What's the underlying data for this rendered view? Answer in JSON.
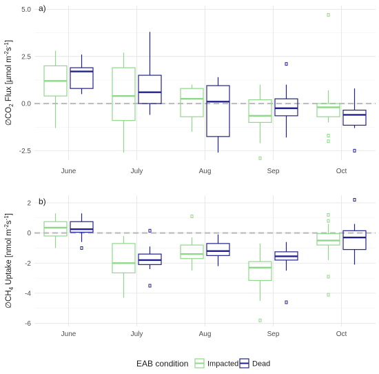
{
  "colors": {
    "impacted": "#8fd88a",
    "dead": "#20208f",
    "grid_major": "#e6e6e6",
    "grid_minor": "#f2f2f2",
    "zero_line": "#bdbdbd"
  },
  "chart_data": [
    {
      "type": "box",
      "panel_label": "a)",
      "ylabel_prefix": "∅CO",
      "ylabel_sub": "2",
      "ylabel_mid": " Flux [",
      "ylabel_unit": "µmol m",
      "ylabel_sup1": "-2",
      "ylabel_s": "s",
      "ylabel_sup2": "-1",
      "ylabel_end": "]",
      "ylim": [
        -3.0,
        5.2
      ],
      "yticks": [
        {
          "value": 5.0,
          "label": "5.0"
        },
        {
          "value": 2.5,
          "label": "2.5"
        },
        {
          "value": 0.0,
          "label": "0.0"
        },
        {
          "value": -2.5,
          "label": "-2.5"
        }
      ],
      "categories": [
        "June",
        "July",
        "Aug",
        "Sep",
        "Oct"
      ],
      "reference_line": 0,
      "series": [
        {
          "name": "Impacted",
          "boxes": [
            {
              "min": -1.3,
              "q1": 0.4,
              "median": 1.2,
              "q3": 2.0,
              "max": 2.8,
              "outliers": []
            },
            {
              "min": -2.6,
              "q1": -0.9,
              "median": 0.4,
              "q3": 1.9,
              "max": 2.7,
              "outliers": []
            },
            {
              "min": -1.5,
              "q1": -0.7,
              "median": 0.25,
              "q3": 0.8,
              "max": 1.0,
              "outliers": []
            },
            {
              "min": -2.1,
              "q1": -1.0,
              "median": -0.65,
              "q3": 0.2,
              "max": 1.0,
              "outliers": [
                -2.9
              ]
            },
            {
              "min": -1.0,
              "q1": -0.7,
              "median": -0.2,
              "q3": 0.0,
              "max": 0.7,
              "outliers": [
                4.7,
                -1.7,
                -2.0
              ]
            }
          ]
        },
        {
          "name": "Dead",
          "boxes": [
            {
              "min": 0.5,
              "q1": 0.8,
              "median": 1.7,
              "q3": 1.9,
              "max": 2.6,
              "outliers": []
            },
            {
              "min": -0.6,
              "q1": 0.0,
              "median": 0.6,
              "q3": 1.5,
              "max": 3.8,
              "outliers": []
            },
            {
              "min": -2.6,
              "q1": -1.75,
              "median": 0.1,
              "q3": 0.95,
              "max": 1.4,
              "outliers": []
            },
            {
              "min": -1.8,
              "q1": -0.65,
              "median": -0.25,
              "q3": 0.25,
              "max": 1.0,
              "outliers": [
                2.1
              ]
            },
            {
              "min": -1.3,
              "q1": -1.15,
              "median": -0.6,
              "q3": -0.35,
              "max": 0.8,
              "outliers": [
                -2.5
              ]
            }
          ]
        }
      ]
    },
    {
      "type": "box",
      "panel_label": "b)",
      "ylabel_prefix": "∅CH",
      "ylabel_sub": "4",
      "ylabel_mid": " Uptake [",
      "ylabel_unit": "nmol m",
      "ylabel_sup1": "-2",
      "ylabel_s": "s",
      "ylabel_sup2": "-1",
      "ylabel_end": "]",
      "ylim": [
        -6.2,
        2.5
      ],
      "yticks": [
        {
          "value": 2,
          "label": "2"
        },
        {
          "value": 0,
          "label": "0"
        },
        {
          "value": -2,
          "label": "-2"
        },
        {
          "value": -4,
          "label": "-4"
        },
        {
          "value": -6,
          "label": "-6"
        }
      ],
      "categories": [
        "June",
        "July",
        "Aug",
        "Sep",
        "Oct"
      ],
      "reference_line": 0,
      "series": [
        {
          "name": "Impacted",
          "boxes": [
            {
              "min": -1.0,
              "q1": -0.2,
              "median": 0.35,
              "q3": 0.75,
              "max": 1.3,
              "outliers": []
            },
            {
              "min": -4.3,
              "q1": -2.65,
              "median": -2.0,
              "q3": -0.7,
              "max": -0.2,
              "outliers": []
            },
            {
              "min": -2.5,
              "q1": -1.7,
              "median": -1.4,
              "q3": -0.8,
              "max": -0.3,
              "outliers": [
                1.1
              ]
            },
            {
              "min": -4.5,
              "q1": -3.15,
              "median": -2.3,
              "q3": -1.9,
              "max": -0.7,
              "outliers": [
                -5.8
              ]
            },
            {
              "min": -1.8,
              "q1": -0.8,
              "median": -0.5,
              "q3": -0.05,
              "max": 0.6,
              "outliers": [
                1.2,
                0.8,
                -2.9,
                -4.1
              ]
            }
          ]
        },
        {
          "name": "Dead",
          "boxes": [
            {
              "min": -0.6,
              "q1": 0.05,
              "median": 0.25,
              "q3": 0.75,
              "max": 1.3,
              "outliers": [
                -1.0
              ]
            },
            {
              "min": -2.4,
              "q1": -2.1,
              "median": -1.8,
              "q3": -1.4,
              "max": -0.9,
              "outliers": [
                0.15,
                -3.5
              ]
            },
            {
              "min": -2.2,
              "q1": -1.5,
              "median": -1.2,
              "q3": -0.7,
              "max": -0.1,
              "outliers": []
            },
            {
              "min": -2.5,
              "q1": -1.8,
              "median": -1.55,
              "q3": -1.25,
              "max": -0.6,
              "outliers": [
                -4.6
              ]
            },
            {
              "min": -2.1,
              "q1": -1.1,
              "median": -0.3,
              "q3": 0.15,
              "max": 0.6,
              "outliers": [
                2.2
              ]
            }
          ]
        }
      ]
    }
  ],
  "legend": {
    "title": "EAB condition",
    "items": [
      "Impacted",
      "Dead"
    ]
  }
}
